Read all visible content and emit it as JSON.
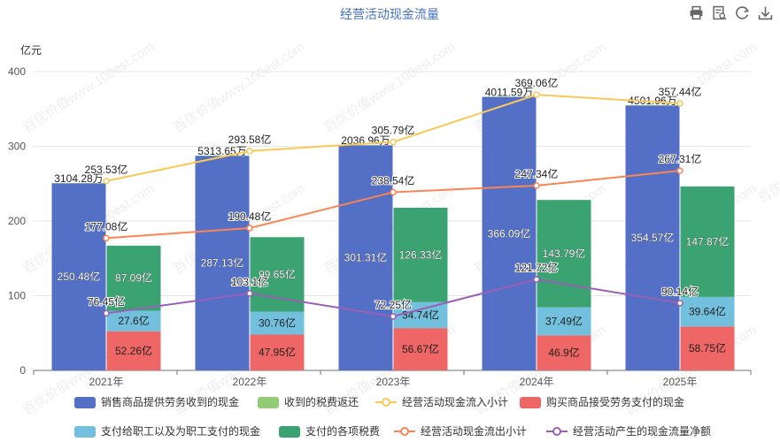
{
  "toolbar": {
    "icons": [
      "print-icon",
      "data-view-icon",
      "refresh-icon",
      "download-icon"
    ]
  },
  "chart_data": {
    "type": "bar",
    "title": "经营活动现金流量",
    "ylabel": "亿元",
    "xlabel": "",
    "ylim": [
      0,
      400
    ],
    "yticks": [
      0,
      100,
      200,
      300,
      400
    ],
    "grid": true,
    "legend_position": "bottom",
    "watermark": "百优价值www.100est.com",
    "categories": [
      "2021年",
      "2022年",
      "2023年",
      "2024年",
      "2025年"
    ],
    "bar_series": [
      {
        "name": "销售商品提供劳务收到的现金",
        "stack": "inflow",
        "color": "#5470c6",
        "values": [
          250.48,
          287.13,
          301.31,
          366.09,
          354.57
        ],
        "labels": [
          "250.48亿",
          "287.13亿",
          "301.31亿",
          "366.09亿",
          "354.57亿"
        ]
      },
      {
        "name": "收到的税费返还",
        "stack": "inflow",
        "color": "#91cc75",
        "values": [
          0.31,
          0.53,
          0.2,
          0.4,
          0.45
        ],
        "labels": [
          "3104.28万",
          "5313.65万",
          "2036.96万",
          "4011.59万",
          "4501.96万"
        ]
      },
      {
        "name": "购买商品接受劳务支付的现金",
        "stack": "outflow",
        "color": "#ee6666",
        "values": [
          52.26,
          47.95,
          56.67,
          46.9,
          58.75
        ],
        "labels": [
          "52.26亿",
          "47.95亿",
          "56.67亿",
          "46.9亿",
          "58.75亿"
        ]
      },
      {
        "name": "支付给职工以及为职工支付的现金",
        "stack": "outflow",
        "color": "#73c0de",
        "values": [
          27.6,
          30.76,
          34.74,
          37.49,
          39.64
        ],
        "labels": [
          "27.6亿",
          "30.76亿",
          "34.74亿",
          "37.49亿",
          "39.64亿"
        ]
      },
      {
        "name": "支付的各项税费",
        "stack": "outflow",
        "color": "#3ba272",
        "values": [
          87.09,
          99.65,
          126.33,
          143.79,
          147.87
        ],
        "labels": [
          "87.09亿",
          "99.65亿",
          "126.33亿",
          "143.79亿",
          "147.87亿"
        ]
      }
    ],
    "line_series": [
      {
        "name": "经营活动现金流入小计",
        "color": "#fac858",
        "values": [
          253.53,
          293.58,
          305.79,
          369.06,
          357.44
        ],
        "labels": [
          "253.53亿",
          "293.58亿",
          "305.79亿",
          "369.06亿",
          "357.44亿"
        ]
      },
      {
        "name": "经营活动现金流出小计",
        "color": "#fc8452",
        "values": [
          177.08,
          190.48,
          238.54,
          247.34,
          267.31
        ],
        "labels": [
          "177.08亿",
          "190.48亿",
          "238.54亿",
          "247.34亿",
          "267.31亿"
        ]
      },
      {
        "name": "经营活动产生的现金流量净额",
        "color": "#9a60b4",
        "values": [
          76.45,
          103.1,
          72.25,
          121.72,
          90.14
        ],
        "labels": [
          "76.45亿",
          "103.1亿",
          "72.25亿",
          "121.72亿",
          "90.14亿"
        ]
      }
    ],
    "legend_order": [
      "销售商品提供劳务收到的现金",
      "收到的税费返还",
      "经营活动现金流入小计",
      "购买商品接受劳务支付的现金",
      "支付给职工以及为职工支付的现金",
      "支付的各项税费",
      "经营活动现金流出小计",
      "经营活动产生的现金流量净额"
    ]
  }
}
